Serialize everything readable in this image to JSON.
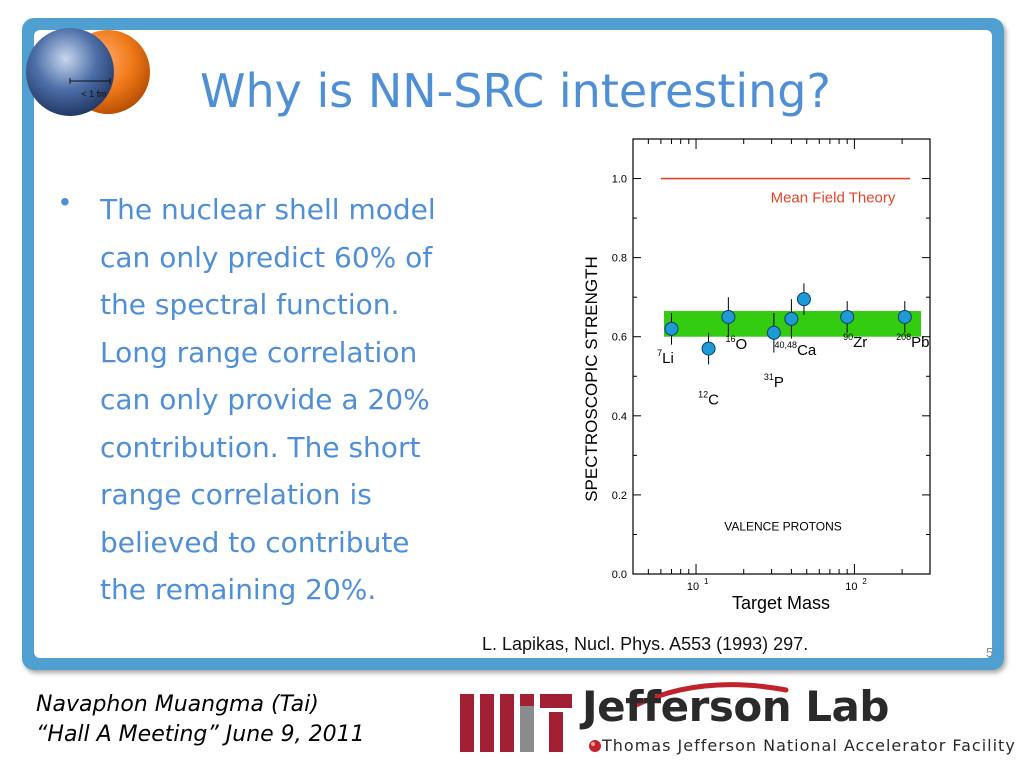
{
  "slide": {
    "title": "Why is NN-SRC interesting?",
    "logo_label": "< 1 fm",
    "bullet_lines": [
      "The nuclear shell model",
      "can only predict 60% of",
      "the spectral function.",
      "Long range correlation",
      "can only provide a 20%",
      "contribution. The short",
      "range correlation is",
      "believed to contribute",
      "the remaining 20%."
    ],
    "citation": "L. Lapikas, Nucl. Phys. A553 (1993) 297.",
    "slide_number": "5"
  },
  "footer": {
    "author_line1": "Navaphon Muangma (Tai)",
    "author_line2": "“Hall A Meeting” June 9, 2011",
    "jlab_name": "Jefferson Lab",
    "jlab_tagline": "Thomas Jefferson National Accelerator Facility"
  },
  "colors": {
    "title": "#4f8fd6",
    "frame": "#4f9fd0",
    "band": "#33cc11",
    "mean_field_line": "#e0452a",
    "point_fill": "#1e9ad6",
    "mit_red": "#a31f34"
  },
  "chart_data": {
    "type": "scatter",
    "title": "",
    "xlabel": "Target Mass",
    "ylabel": "SPECTROSCOPIC STRENGTH",
    "x_scale": "log",
    "xlim": [
      4,
      300
    ],
    "ylim": [
      0.0,
      1.1
    ],
    "x_ticks": [
      {
        "value": 10,
        "base": "10",
        "exp": "1"
      },
      {
        "value": 100,
        "base": "10",
        "exp": "2"
      }
    ],
    "y_ticks": [
      "0.0",
      "0.2",
      "0.4",
      "0.6",
      "0.8",
      "1.0"
    ],
    "points": [
      {
        "x": 7,
        "y": 0.62,
        "err": 0.04,
        "mass": "7",
        "element": "Li"
      },
      {
        "x": 12,
        "y": 0.57,
        "err": 0.04,
        "mass": "12",
        "element": "C"
      },
      {
        "x": 16,
        "y": 0.65,
        "err": 0.05,
        "mass": "16",
        "element": "O"
      },
      {
        "x": 31,
        "y": 0.61,
        "err": 0.05,
        "mass": "31",
        "element": "P"
      },
      {
        "x": 40,
        "y": 0.645,
        "err": 0.05,
        "mass": "40,48",
        "element": "Ca"
      },
      {
        "x": 48,
        "y": 0.695,
        "err": 0.04,
        "mass": "",
        "element": ""
      },
      {
        "x": 90,
        "y": 0.65,
        "err": 0.04,
        "mass": "90",
        "element": "Zr"
      },
      {
        "x": 208,
        "y": 0.65,
        "err": 0.04,
        "mass": "208",
        "element": "Pb"
      }
    ],
    "band": {
      "ymin": 0.6,
      "ymax": 0.665
    },
    "mean_field": {
      "y": 1.0,
      "label": "Mean Field Theory"
    },
    "annotation": "VALENCE PROTONS"
  }
}
